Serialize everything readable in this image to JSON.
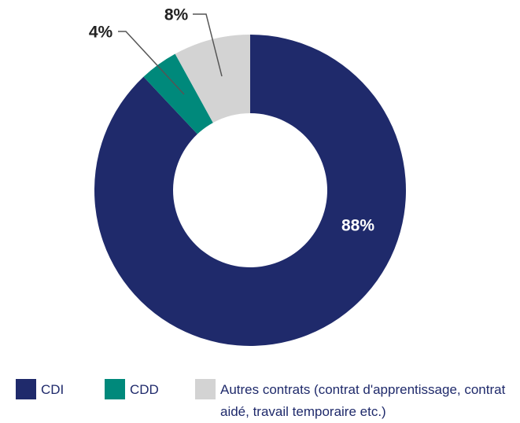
{
  "chart_data": {
    "type": "donut",
    "categories": [
      "CDI",
      "CDD",
      "Autres contrats (contrat d'apprentissage, contrat aidé, travail temporaire etc.)"
    ],
    "values": [
      88,
      4,
      8
    ],
    "value_labels": [
      "88%",
      "4%",
      "8%"
    ],
    "colors": [
      "#1f2a6b",
      "#00897b",
      "#d3d3d3"
    ]
  }
}
